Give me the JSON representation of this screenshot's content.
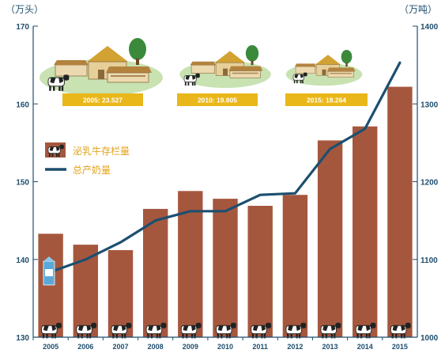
{
  "chart_data": {
    "type": "bar+line",
    "categories": [
      "2005",
      "2006",
      "2007",
      "2008",
      "2009",
      "2010",
      "2011",
      "2012",
      "2013",
      "2014",
      "2015"
    ],
    "left_axis": {
      "unit": "（万头）",
      "ylim": [
        130,
        170
      ],
      "ticks": [
        130,
        140,
        150,
        160,
        170
      ]
    },
    "right_axis": {
      "unit": "（万吨）",
      "ylim": [
        1000,
        1400
      ],
      "ticks": [
        1000,
        1100,
        1200,
        1300,
        1400
      ]
    },
    "series": [
      {
        "name": "泌乳牛存栏量",
        "kind": "bar",
        "axis": "left",
        "color": "#a5573e",
        "values": [
          143.3,
          141.9,
          141.2,
          146.5,
          148.8,
          147.8,
          146.9,
          148.3,
          155.3,
          157.1,
          162.2
        ]
      },
      {
        "name": "总产奶量",
        "kind": "line",
        "axis": "right",
        "color": "#1c4f70",
        "values": [
          1084,
          1100,
          1122,
          1150,
          1162,
          1162,
          1183,
          1185,
          1242,
          1268,
          1353
        ]
      }
    ],
    "legend_position": "middle-left",
    "annotations": [
      {
        "label": "2005: 23.527"
      },
      {
        "label": "2010: 19.805"
      },
      {
        "label": "2015: 18.264"
      }
    ],
    "grid": false
  },
  "colors": {
    "axis": "#1f4e6e",
    "bar": "#a5573e",
    "line": "#1c4f70",
    "label_box": "#eab71a",
    "ground": "#c8e2b2"
  },
  "icons": [
    "cow-icon",
    "milk-carton-icon",
    "farm-icon"
  ]
}
